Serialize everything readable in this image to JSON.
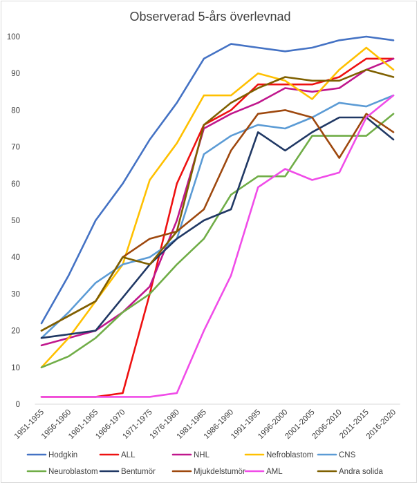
{
  "chart_data": {
    "type": "line",
    "title": "Observerad 5-års överlevnad",
    "xlabel": "",
    "ylabel": "",
    "ylim": [
      0,
      100
    ],
    "yticks": [
      0,
      10,
      20,
      30,
      40,
      50,
      60,
      70,
      80,
      90,
      100
    ],
    "grid": false,
    "legend_position": "bottom",
    "categories": [
      "1951-1955",
      "1956-1960",
      "1961-1965",
      "1966-1970",
      "1971-1975",
      "1976-1980",
      "1981-1985",
      "1986-1990",
      "1991-1995",
      "1996-2000",
      "2001-2005",
      "2006-2010",
      "2011-2015",
      "2016-2020"
    ],
    "series": [
      {
        "name": "Hodgkin",
        "color": "#4472c4",
        "values": [
          22,
          35,
          50,
          60,
          72,
          82,
          94,
          98,
          97,
          96,
          97,
          99,
          100,
          99
        ]
      },
      {
        "name": "ALL",
        "color": "#ee1111",
        "values": [
          2,
          2,
          2,
          3,
          30,
          60,
          76,
          80,
          87,
          87,
          87,
          89,
          94,
          94
        ]
      },
      {
        "name": "NHL",
        "color": "#c0168c",
        "values": [
          16,
          18,
          20,
          25,
          32,
          50,
          75,
          79,
          82,
          86,
          85,
          86,
          91,
          94
        ]
      },
      {
        "name": "Nefroblastom",
        "color": "#ffc000",
        "values": [
          10,
          18,
          28,
          38,
          61,
          71,
          84,
          84,
          90,
          88,
          83,
          91,
          97,
          91
        ]
      },
      {
        "name": "CNS",
        "color": "#5b9bd5",
        "values": [
          18,
          25,
          33,
          38,
          40,
          45,
          68,
          73,
          76,
          75,
          78,
          82,
          81,
          84
        ]
      },
      {
        "name": "Neuroblastom",
        "color": "#70ad47",
        "values": [
          10,
          13,
          18,
          25,
          30,
          38,
          45,
          57,
          62,
          62,
          73,
          73,
          73,
          79
        ]
      },
      {
        "name": "Bentumör",
        "color": "#203864",
        "values": [
          18,
          19,
          20,
          29,
          38,
          45,
          50,
          53,
          74,
          69,
          74,
          78,
          78,
          72
        ]
      },
      {
        "name": "Mjukdelstumör",
        "color": "#9e480e",
        "values": [
          20,
          24,
          28,
          40,
          45,
          47,
          53,
          69,
          79,
          80,
          78,
          67,
          79,
          74
        ]
      },
      {
        "name": "AML",
        "color": "#f04ce8",
        "values": [
          2,
          2,
          2,
          2,
          2,
          3,
          20,
          35,
          59,
          64,
          61,
          63,
          78,
          84
        ]
      },
      {
        "name": "Andra solida",
        "color": "#7f6000",
        "values": [
          20,
          24,
          28,
          40,
          38,
          47,
          76,
          82,
          86,
          89,
          88,
          88,
          91,
          89
        ]
      }
    ]
  }
}
